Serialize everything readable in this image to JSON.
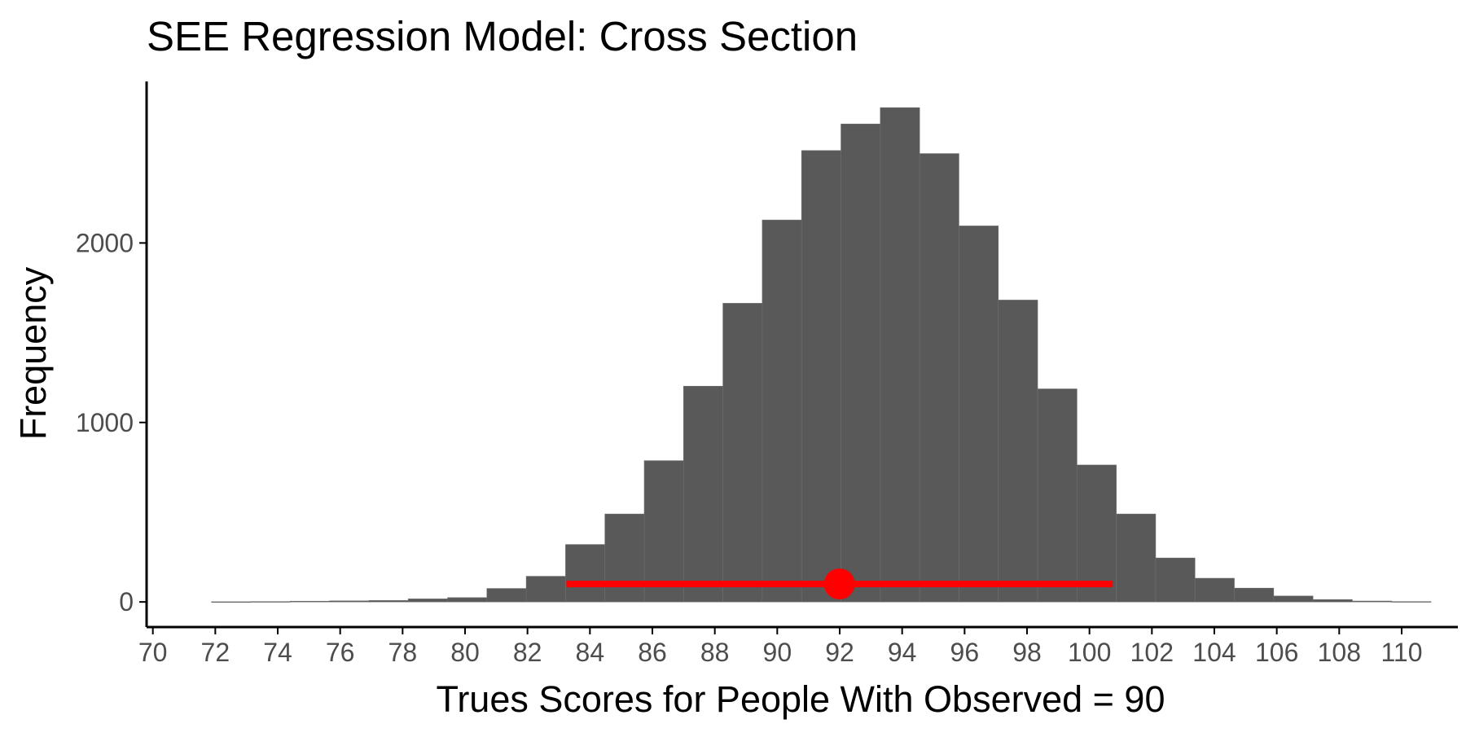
{
  "chart_data": {
    "type": "bar",
    "title": "SEE Regression Model: Cross Section",
    "xlabel": "Trues Scores for People With Observed = 90",
    "ylabel": "Frequency",
    "bin_width": 1.26,
    "bins_x_start": 71.88,
    "values": [
      1,
      2,
      4,
      6,
      8,
      17,
      24,
      75,
      143,
      320,
      490,
      787,
      1202,
      1664,
      2128,
      2515,
      2663,
      2754,
      2498,
      2095,
      1682,
      1187,
      763,
      490,
      245,
      132,
      77,
      33,
      13,
      5,
      2
    ],
    "interval": {
      "low": 83.25,
      "high": 100.75,
      "point": 92.0,
      "y": 100
    },
    "xlim": [
      69.8,
      111.8
    ],
    "ylim": [
      -140,
      2900
    ],
    "x_ticks": [
      70,
      72,
      74,
      76,
      78,
      80,
      82,
      84,
      86,
      88,
      90,
      92,
      94,
      96,
      98,
      100,
      102,
      104,
      106,
      108,
      110
    ],
    "y_ticks": [
      0,
      1000,
      2000
    ],
    "grid": false,
    "legend": "none",
    "colors": {
      "bar": "#595959",
      "bar_outline": "#6e6e6e",
      "interval": "#ff0000",
      "axis": "#000000",
      "tick_text": "#4d4d4d"
    }
  }
}
